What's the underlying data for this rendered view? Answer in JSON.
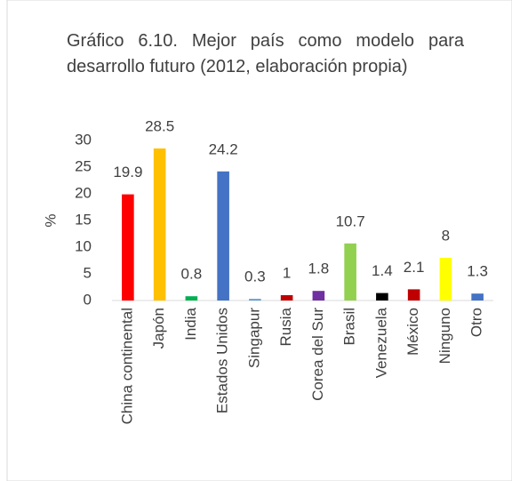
{
  "chart_data": {
    "type": "bar",
    "title": "Gráfico 6.10. Mejor país como modelo para desarrollo futuro (2012, elaboración propia)",
    "y_label": "%",
    "categories": [
      "China continental",
      "Japón",
      "India",
      "Estados Unidos",
      "Singapur",
      "Rusia",
      "Corea del Sur",
      "Brasil",
      "Venezuela",
      "México",
      "Ninguno",
      "Otro"
    ],
    "values": [
      19.9,
      28.5,
      0.8,
      24.2,
      0.3,
      1,
      1.8,
      10.7,
      1.4,
      2.1,
      8,
      1.3
    ],
    "colors": [
      "#ff0000",
      "#ffc000",
      "#00b050",
      "#4472c4",
      "#5b9bd5",
      "#c00000",
      "#7030a0",
      "#92d050",
      "#000000",
      "#c00000",
      "#ffff00",
      "#4472c4"
    ],
    "ylim": [
      0,
      30
    ],
    "yticks": [
      0,
      5,
      10,
      15,
      20,
      25,
      30
    ],
    "grid": false
  }
}
